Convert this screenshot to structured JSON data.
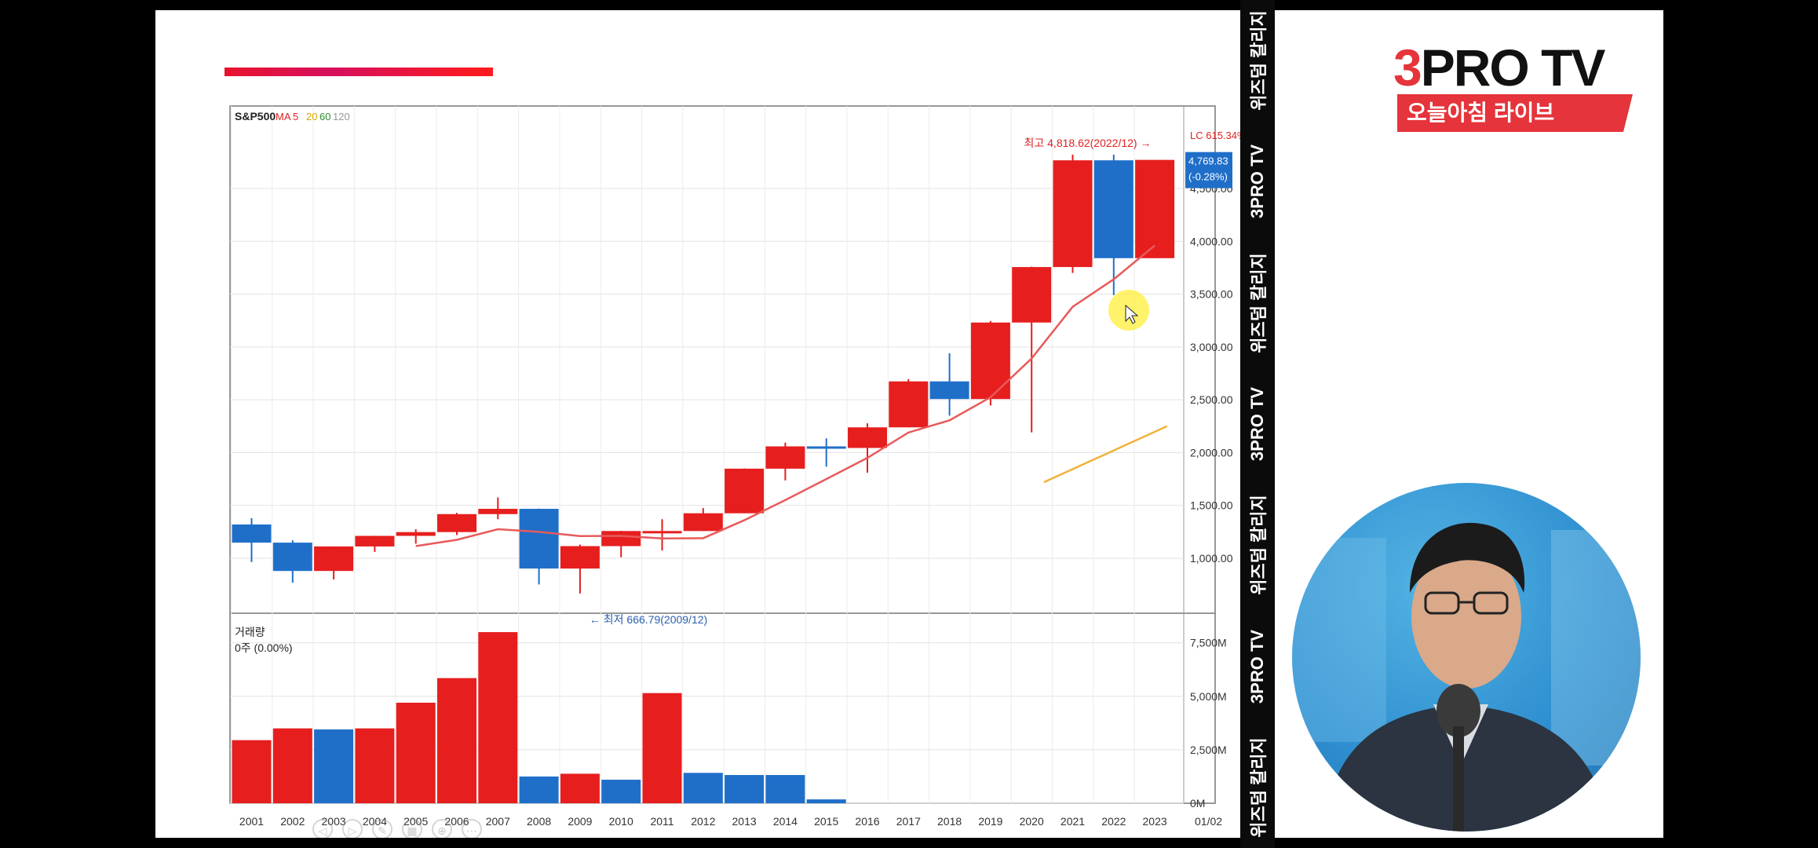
{
  "banner": {
    "items": [
      "위즈덤 칼리지",
      "3PRO TV",
      "위즈덤 칼리지",
      "3PRO TV",
      "위즈덤 칼리지",
      "3PRO TV",
      "위즈덤 칼리지"
    ]
  },
  "logo": {
    "main_a": "3",
    "main_b": "PRO TV",
    "subtitle": "오늘아침 라이브"
  },
  "colors": {
    "up": "#e61e1e",
    "down": "#1f6fc9",
    "ma_line": "#e85a5a",
    "ma_long": "#f0b23a",
    "accent_bar": "#e8122c",
    "logo_red": "#e5343b"
  },
  "chart_data": [
    {
      "type": "candlestick",
      "legend": {
        "symbol": "S&P500",
        "ma_label": "MA",
        "ma_periods": [
          "5",
          "20",
          "60",
          "120"
        ]
      },
      "categories": [
        "2001",
        "2002",
        "2003",
        "2004",
        "2005",
        "2006",
        "2007",
        "2008",
        "2009",
        "2010",
        "2011",
        "2012",
        "2013",
        "2014",
        "2015",
        "2016",
        "2017",
        "2018",
        "2019",
        "2020",
        "2021",
        "2022",
        "2023"
      ],
      "x_extra_tick": "01/02",
      "ohlc": [
        [
          1320,
          1380,
          965,
          1148
        ],
        [
          1148,
          1170,
          770,
          880
        ],
        [
          880,
          1112,
          800,
          1112
        ],
        [
          1112,
          1213,
          1060,
          1212
        ],
        [
          1212,
          1275,
          1138,
          1248
        ],
        [
          1248,
          1430,
          1220,
          1418
        ],
        [
          1418,
          1576,
          1370,
          1468
        ],
        [
          1468,
          1470,
          752,
          903
        ],
        [
          903,
          1130,
          667,
          1115
        ],
        [
          1115,
          1260,
          1010,
          1258
        ],
        [
          1258,
          1370,
          1074,
          1258
        ],
        [
          1258,
          1475,
          1258,
          1426
        ],
        [
          1426,
          1850,
          1426,
          1848
        ],
        [
          1848,
          2095,
          1737,
          2059
        ],
        [
          2059,
          2135,
          1867,
          2044
        ],
        [
          2044,
          2277,
          1810,
          2239
        ],
        [
          2239,
          2695,
          2239,
          2674
        ],
        [
          2674,
          2940,
          2350,
          2507
        ],
        [
          2507,
          3245,
          2445,
          3231
        ],
        [
          3231,
          3760,
          2192,
          3756
        ],
        [
          3756,
          4819,
          3700,
          4766
        ],
        [
          4766,
          4819,
          3490,
          3840
        ],
        [
          3840,
          4770,
          3840,
          4770
        ]
      ],
      "ma5": [
        null,
        null,
        null,
        null,
        1115,
        1175,
        1275,
        1250,
        1210,
        1212,
        1188,
        1190,
        1360,
        1551,
        1750,
        1950,
        2190,
        2305,
        2524,
        2891,
        3380,
        3640,
        3960
      ],
      "ma_long": {
        "start_index": 19.3,
        "end_index": 22.3,
        "start_value": 1720,
        "end_value": 2250
      },
      "y_ticks": [
        "1,000.00",
        "1,500.00",
        "2,000.00",
        "2,500.00",
        "3,000.00",
        "3,500.00",
        "4,000.00",
        "4,500.00"
      ],
      "y_tick_values": [
        1000,
        1500,
        2000,
        2500,
        3000,
        3500,
        4000,
        4500
      ],
      "ylim": [
        480,
        5280
      ],
      "annotations": {
        "high": "최고 4,818.62(2022/12)",
        "low": "최저 666.79(2009/12)"
      },
      "last_price_box": {
        "top_text": "LC 615.34%",
        "price": "4,769.83",
        "change": "(-0.28%)"
      }
    },
    {
      "type": "bar",
      "title": "거래량",
      "subtitle": "0주 (0.00%)",
      "categories": [
        "2001",
        "2002",
        "2003",
        "2004",
        "2005",
        "2006",
        "2007",
        "2008",
        "2009",
        "2010",
        "2011",
        "2012",
        "2013",
        "2014",
        "2015",
        "2016",
        "2017",
        "2018",
        "2019",
        "2020",
        "2021",
        "2022",
        "2023"
      ],
      "values": [
        2950,
        3500,
        3450,
        3500,
        4700,
        5850,
        8000,
        1250,
        1380,
        1100,
        5150,
        1420,
        1320,
        1320,
        180,
        0,
        0,
        0,
        0,
        0,
        0,
        0,
        0
      ],
      "colors_by_bar": [
        "up",
        "up",
        "down",
        "up",
        "up",
        "up",
        "up",
        "down",
        "up",
        "down",
        "up",
        "down",
        "down",
        "down",
        "down",
        "up",
        "up",
        "down",
        "up",
        "up",
        "up",
        "down",
        "up"
      ],
      "y_ticks": [
        "0M",
        "2,500M",
        "5,000M",
        "7,500M"
      ],
      "y_tick_values": [
        0,
        2500,
        5000,
        7500
      ],
      "ylim": [
        0,
        8700
      ],
      "unit": "M"
    }
  ]
}
